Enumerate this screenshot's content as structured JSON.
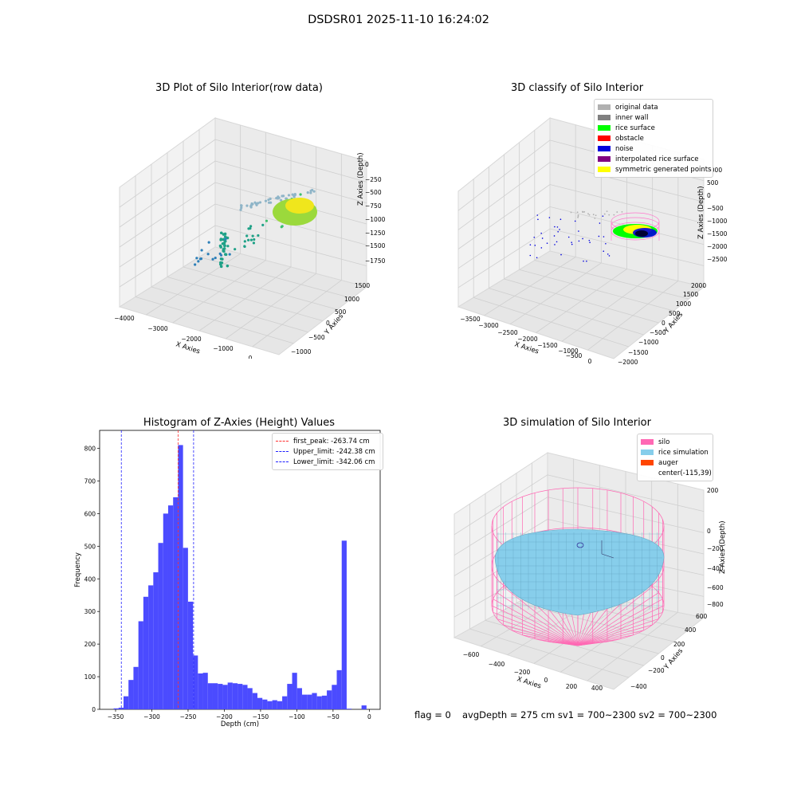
{
  "suptitle": "DSDSR01 2025-11-10 16:24:02",
  "chart_data": [
    {
      "type": "scatter3d",
      "title": "3D Plot of Silo Interior(row data)",
      "xlabel": "X Axies",
      "ylabel": "Y Axies",
      "zlabel": "Z Axies (Depth)",
      "x_ticks": [
        "−4000",
        "−3000",
        "−2000",
        "−1000",
        "0"
      ],
      "y_ticks": [
        "−1000",
        "−500",
        "0",
        "500",
        "1000",
        "1500"
      ],
      "z_ticks": [
        "0",
        "−250",
        "−500",
        "−750",
        "−1000",
        "−1250",
        "−1500",
        "−1750"
      ],
      "xlim": [
        -4300,
        300
      ],
      "ylim": [
        -1300,
        1700
      ],
      "zlim": [
        -1900,
        100
      ],
      "colormap": [
        "#2c7fb8",
        "#1fa187",
        "#3bbf6e",
        "#9bd93c",
        "#f0e61c"
      ],
      "grid": true
    },
    {
      "type": "scatter3d",
      "title": "3D classify of Silo Interior",
      "xlabel": "X Axies",
      "ylabel": "Y Axies",
      "zlabel": "Z Axies (Depth)",
      "x_ticks": [
        "−3500",
        "−3000",
        "−2500",
        "−2000",
        "−1500",
        "−1000",
        "−500",
        "0"
      ],
      "y_ticks": [
        "−2000",
        "−1500",
        "−1000",
        "−500",
        "0",
        "500",
        "1000",
        "1500",
        "2000"
      ],
      "z_ticks": [
        "1000",
        "500",
        "0",
        "−500",
        "−1000",
        "−1500",
        "−2000",
        "−2500"
      ],
      "legend": [
        {
          "label": "original data",
          "color": "#b0b0b0"
        },
        {
          "label": "inner wall",
          "color": "#808080"
        },
        {
          "label": "rice surface",
          "color": "#00ff00"
        },
        {
          "label": "obstacle",
          "color": "#ff0000"
        },
        {
          "label": "noise",
          "color": "#0000dd"
        },
        {
          "label": "interpolated rice surface",
          "color": "#800080"
        },
        {
          "label": "symmetric generated points",
          "color": "#ffff00"
        }
      ],
      "grid": true
    },
    {
      "type": "bar",
      "title": "Histogram of Z-Axies (Height) Values",
      "xlabel": "Depth (cm)",
      "ylabel": "Frequency",
      "bar_color": "#4b4bff",
      "x_ticks": [
        -350,
        -300,
        -250,
        -200,
        -150,
        -100,
        -50,
        0
      ],
      "y_ticks": [
        0,
        100,
        200,
        300,
        400,
        500,
        600,
        700,
        800
      ],
      "xlim": [
        -372,
        15
      ],
      "ylim": [
        0,
        855
      ],
      "bin_width": 6.84,
      "bin_start": -352.7,
      "values": [
        3,
        5,
        40,
        90,
        130,
        270,
        345,
        380,
        420,
        510,
        600,
        625,
        650,
        810,
        495,
        330,
        165,
        110,
        112,
        80,
        80,
        78,
        75,
        82,
        80,
        78,
        75,
        65,
        50,
        35,
        30,
        25,
        28,
        25,
        40,
        78,
        112,
        65,
        45,
        45,
        50,
        40,
        42,
        58,
        75,
        120,
        517,
        2,
        0,
        0,
        12
      ],
      "vlines": [
        {
          "label": "first_peak: -263.74 cm",
          "x": -263.74,
          "color": "#ff3030"
        },
        {
          "label": "Upper_limit: -242.38 cm",
          "x": -242.38,
          "color": "#2020ff"
        },
        {
          "label": "Lower_limit: -342.06 cm",
          "x": -342.06,
          "color": "#2020ff"
        }
      ]
    },
    {
      "type": "surface3d",
      "title": "3D simulation of Silo Interior",
      "xlabel": "X Axies",
      "ylabel": "Y Axies",
      "zlabel": "Z Axies (Depth)",
      "x_ticks": [
        "−600",
        "−400",
        "−200",
        "0",
        "200",
        "400"
      ],
      "y_ticks": [
        "−400",
        "−200",
        "0",
        "200",
        "400",
        "600"
      ],
      "z_ticks": [
        "200",
        "0",
        "−200",
        "−400",
        "−600",
        "−800"
      ],
      "legend": [
        {
          "label": "silo",
          "color": "#ff69b4"
        },
        {
          "label": "rice simulation",
          "color": "#87ceeb"
        },
        {
          "label": "auger",
          "color": "#ff4500"
        },
        {
          "label": "center(-115,39)",
          "color": ""
        }
      ],
      "grid": true
    }
  ],
  "footer": {
    "flag": "flag = 0",
    "stats": "avgDepth = 275 cm  sv1 = 700~2300  sv2 = 700~2300"
  }
}
